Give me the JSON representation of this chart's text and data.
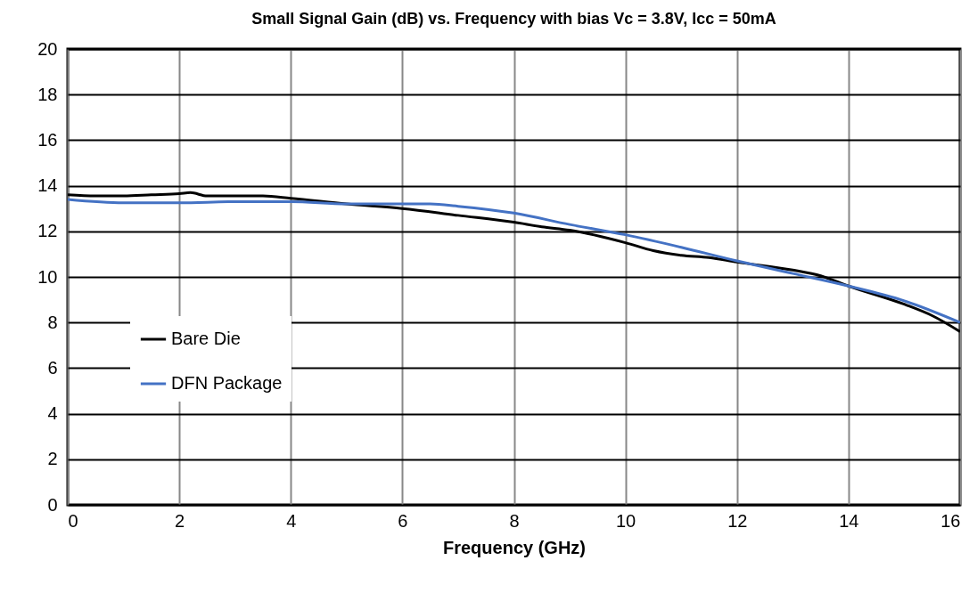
{
  "chart_data": {
    "type": "line",
    "title": "Small Signal Gain (dB) vs. Frequency with bias Vc = 3.8V, Icc = 50mA",
    "xlabel": "Frequency (GHz)",
    "xlim": [
      0,
      16
    ],
    "xticks": [
      0,
      2,
      4,
      6,
      8,
      10,
      12,
      14,
      16
    ],
    "ylim": [
      0,
      20
    ],
    "yticks": [
      0,
      2,
      4,
      6,
      8,
      10,
      12,
      14,
      16,
      18,
      20
    ],
    "grid": true,
    "legend": "bottom left",
    "line_style": "solid",
    "marker": "none",
    "series": [
      {
        "name": "Bare Die",
        "color": "#000000",
        "x": [
          0,
          0.5,
          1,
          1.5,
          2,
          2.2,
          2.5,
          3,
          3.5,
          4,
          5,
          6,
          7,
          8,
          8.5,
          9,
          10,
          10.5,
          11,
          11.5,
          12,
          13,
          13.5,
          14,
          15,
          15.5,
          16
        ],
        "values": [
          13.6,
          13.55,
          13.55,
          13.6,
          13.65,
          13.7,
          13.55,
          13.55,
          13.55,
          13.45,
          13.2,
          13.0,
          12.7,
          12.4,
          12.2,
          12.05,
          11.5,
          11.15,
          10.95,
          10.85,
          10.65,
          10.3,
          10.05,
          9.6,
          8.8,
          8.3,
          7.6
        ]
      },
      {
        "name": "DFN Package",
        "color": "#4472c4",
        "x": [
          0,
          1,
          2,
          3,
          4,
          5,
          6,
          6.5,
          7,
          8,
          9,
          10,
          11,
          12,
          13,
          14,
          15,
          16
        ],
        "values": [
          13.4,
          13.25,
          13.25,
          13.3,
          13.3,
          13.2,
          13.2,
          13.2,
          13.1,
          12.8,
          12.3,
          11.85,
          11.3,
          10.7,
          10.15,
          9.6,
          8.95,
          8.0
        ]
      }
    ]
  }
}
